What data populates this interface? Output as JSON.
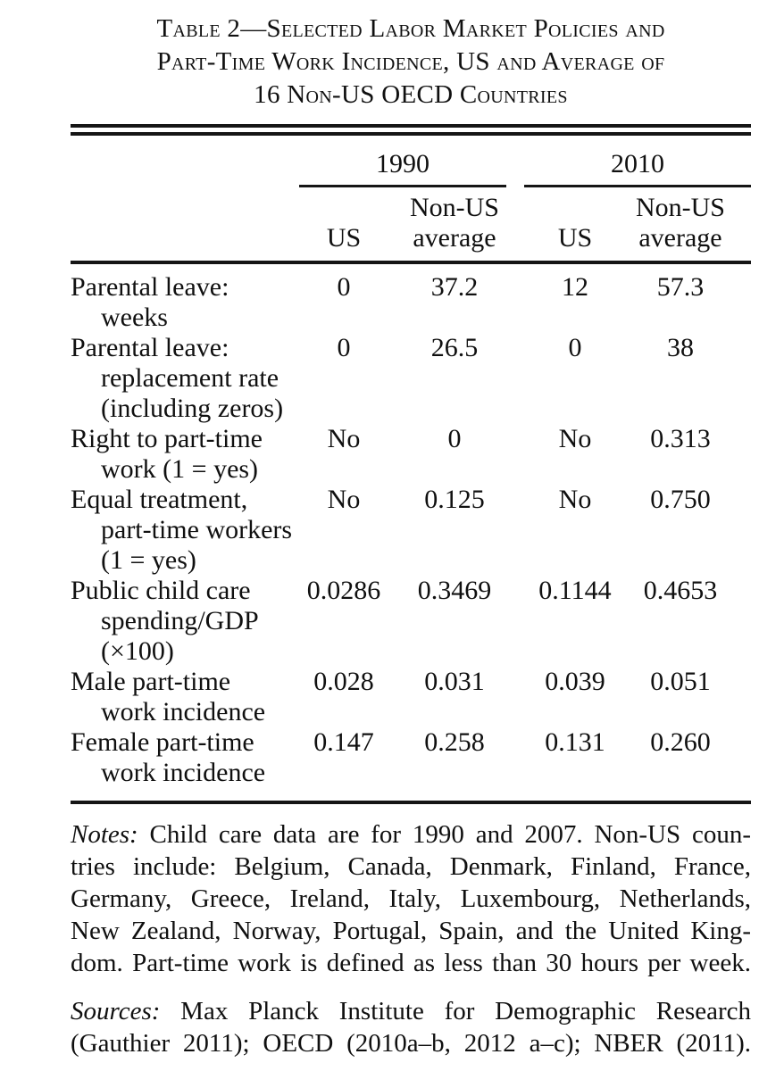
{
  "page": {
    "background": "#ffffff",
    "text_color": "#101010",
    "rule_color": "#151515"
  },
  "title": {
    "text": "Table 2—Selected Labor Market Policies and\nPart-Time Work Incidence, US and Average of\n16 Non-US OECD Countries"
  },
  "table": {
    "groups": [
      {
        "label": "1990"
      },
      {
        "label": "2010"
      }
    ],
    "columns": [
      {
        "label": "US"
      },
      {
        "label": "Non-US\naverage"
      },
      {
        "label": "US"
      },
      {
        "label": "Non-US\naverage"
      }
    ],
    "rows": [
      {
        "label": "Parental leave:\nweeks",
        "values": [
          "0",
          "37.2",
          "12",
          "57.3"
        ]
      },
      {
        "label": "Parental leave:\nreplacement rate\n(including zeros)",
        "values": [
          "0",
          "26.5",
          "0",
          "38"
        ]
      },
      {
        "label": "Right to part-time\nwork (1 = yes)",
        "values": [
          "No",
          "0",
          "No",
          "0.313"
        ]
      },
      {
        "label": "Equal treatment,\npart-time workers\n(1 = yes)",
        "values": [
          "No",
          "0.125",
          "No",
          "0.750"
        ]
      },
      {
        "label": "Public child care\nspending/GDP\n(×100)",
        "values": [
          "0.0286",
          "0.3469",
          "0.1144",
          "0.4653"
        ]
      },
      {
        "label": "Male part-time\nwork incidence",
        "values": [
          "0.028",
          "0.031",
          "0.039",
          "0.051"
        ]
      },
      {
        "label": "Female part-time\nwork incidence",
        "values": [
          "0.147",
          "0.258",
          "0.131",
          "0.260"
        ]
      }
    ]
  },
  "notes": {
    "prefix": "Notes:",
    "text": "Child care data are for 1990 and 2007. Non-US coun-\ntries include: Belgium, Canada, Denmark, Finland, France,\nGermany, Greece, Ireland, Italy, Luxembourg, Netherlands,\nNew Zealand, Norway, Portugal, Spain, and the United King-\ndom. Part-time work is defined as less than 30 hours per week."
  },
  "sources": {
    "prefix": "Sources:",
    "text": "Max Planck Institute for Demographic Research\n(Gauthier 2011); OECD (2010a–b, 2012 a–c); NBER (2011)."
  }
}
